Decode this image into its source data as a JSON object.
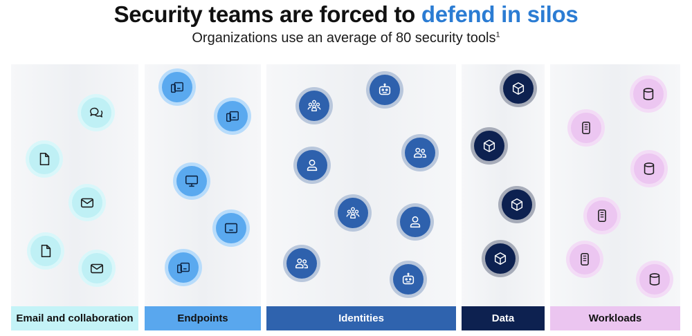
{
  "header": {
    "title_plain": "Security teams are forced to ",
    "title_highlight": "defend in silos",
    "subtitle": "Organizations use an average of 80 security tools",
    "footnote_mark": "1"
  },
  "colors": {
    "highlight": "#2b7cd3",
    "email": "#c4f3f7",
    "endpoints": "#59a7ee",
    "identities": "#2f63ae",
    "data": "#0d2150",
    "workloads": "#ebc5f0"
  },
  "categories": [
    {
      "id": "email",
      "label": "Email and collaboration",
      "icons": [
        "chat-icon",
        "document-icon",
        "mail-icon",
        "document-icon",
        "mail-icon"
      ]
    },
    {
      "id": "endpoints",
      "label": "Endpoints",
      "icons": [
        "devices-icon",
        "devices-icon",
        "monitor-icon",
        "tablet-icon",
        "devices-icon"
      ]
    },
    {
      "id": "identities",
      "label": "Identities",
      "icons": [
        "bot-icon",
        "group-icon",
        "people-icon",
        "person-icon",
        "group-icon",
        "person-icon",
        "people-icon",
        "bot-icon"
      ]
    },
    {
      "id": "data",
      "label": "Data",
      "icons": [
        "cube-icon",
        "cube-icon",
        "cube-icon",
        "cube-icon"
      ]
    },
    {
      "id": "workloads",
      "label": "Workloads",
      "icons": [
        "database-icon",
        "phone-icon",
        "database-icon",
        "phone-icon",
        "phone-icon",
        "database-icon"
      ]
    }
  ]
}
